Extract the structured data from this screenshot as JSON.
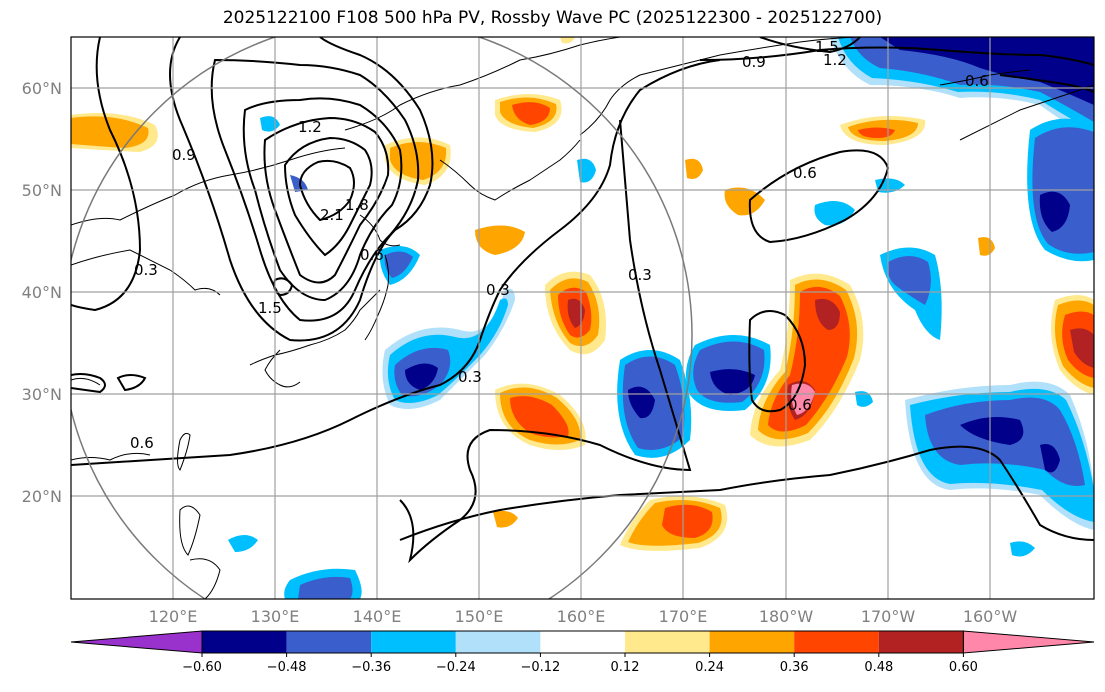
{
  "title": "2025122100 F108 500 hPa PV, Rossby Wave PC (2025122300 - 2025122700)",
  "lat_labels": [
    "60°N",
    "50°N",
    "40°N",
    "30°N",
    "20°N"
  ],
  "lon_labels": [
    "120°E",
    "130°E",
    "140°E",
    "150°E",
    "160°E",
    "170°E",
    "180°W",
    "170°W",
    "160°W"
  ],
  "colorbar": {
    "tick_labels": [
      "−0.60",
      "−0.48",
      "−0.36",
      "−0.24",
      "−0.12",
      "0.12",
      "0.24",
      "0.36",
      "0.48",
      "0.60"
    ],
    "colors": [
      "#9932cc",
      "#00008b",
      "#3a5fcd",
      "#00bfff",
      "#b0e0fa",
      "#ffffff",
      "#ffe98c",
      "#ffa500",
      "#ff4500",
      "#b22222",
      "#ff88aa"
    ]
  },
  "contour_labels": [
    "1.5",
    "1.2",
    "0.9",
    "0.6",
    "1.2",
    "0.9",
    "2.1",
    "1.8",
    "0.6",
    "0.3",
    "1.5",
    "0.3",
    "0.3",
    "0.3",
    "0.6",
    "0.6",
    "0.6"
  ]
}
